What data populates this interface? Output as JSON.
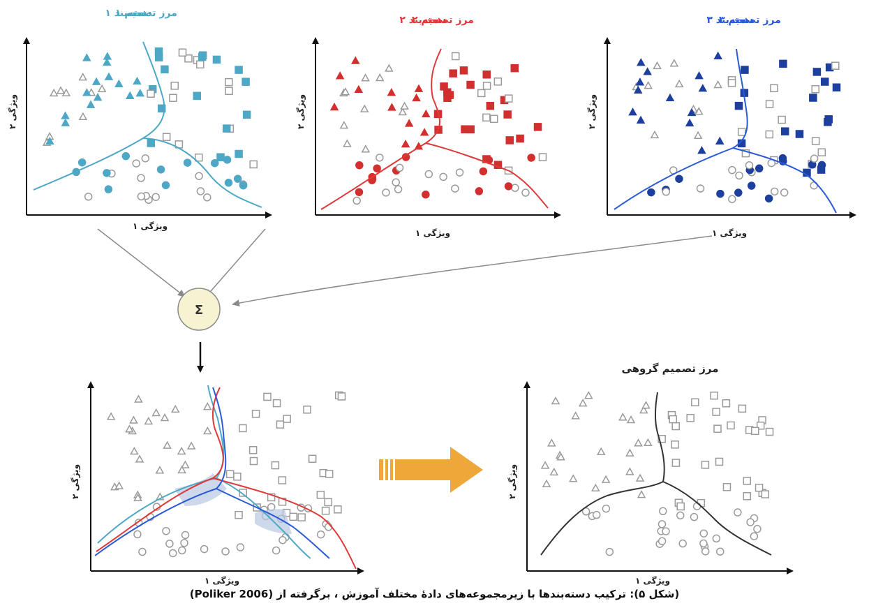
{
  "figure": {
    "caption": "(شکل ۵): ترکیب دسته‌بندها با زیرمجموعه‌های دادهٔ مختلف آموزش ، برگرفته از (Poliker 2006)",
    "sum_symbol": "Σ",
    "ensemble_title": "مرز تصمیم گروهی",
    "axis_x_label": "ویژگی ۱",
    "axis_y_label": "ویژگی ۲",
    "classifiers": [
      {
        "title_left": "مرز تصمیم ۱",
        "title_right": "دسته‌بند ۱",
        "color": "#4fa7c6",
        "fill": "#4fa7c6"
      },
      {
        "title_left": "مرز تصمیم ۲",
        "title_right": "دسته‌بند ۲",
        "color": "#e0393a",
        "fill": "#d32f2f"
      },
      {
        "title_left": "مرز تصمیم ۳",
        "title_right": "دسته‌بند ۳",
        "color": "#2a5bd7",
        "fill": "#1d3f9e"
      }
    ],
    "colors": {
      "neutral": "#9a9a9a",
      "arrow": "#8a8a8a",
      "big_arrow": "#f0a73a",
      "ensemble_line": "#333333",
      "sum_fill": "#f5f3d2",
      "overlap_fill": "#b9c8e2"
    }
  }
}
